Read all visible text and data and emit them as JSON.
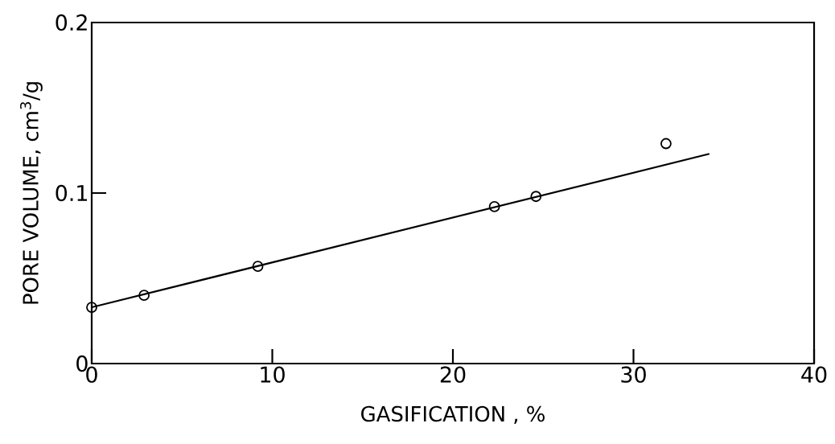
{
  "chart_data": {
    "type": "scatter",
    "xlabel": "GASIFICATION , %",
    "ylabel": "PORE VOLUME, cm$^{3}$/g",
    "xlim": [
      0,
      40
    ],
    "ylim": [
      0,
      0.2
    ],
    "xticks": [
      0,
      10,
      20,
      30,
      40
    ],
    "yticks": [
      0,
      0.1,
      0.2
    ],
    "series": [
      {
        "marker": "circle",
        "color": "#000000",
        "x": [
          0,
          2.9,
          9.2,
          22.3,
          24.6,
          31.8
        ],
        "values": [
          0.033,
          0.04,
          0.057,
          0.092,
          0.098,
          0.129
        ]
      },
      {
        "type": "line",
        "marker": "none",
        "color": "#000000",
        "x": [
          0,
          34.2
        ],
        "values": [
          0.033,
          0.123
        ]
      }
    ]
  }
}
